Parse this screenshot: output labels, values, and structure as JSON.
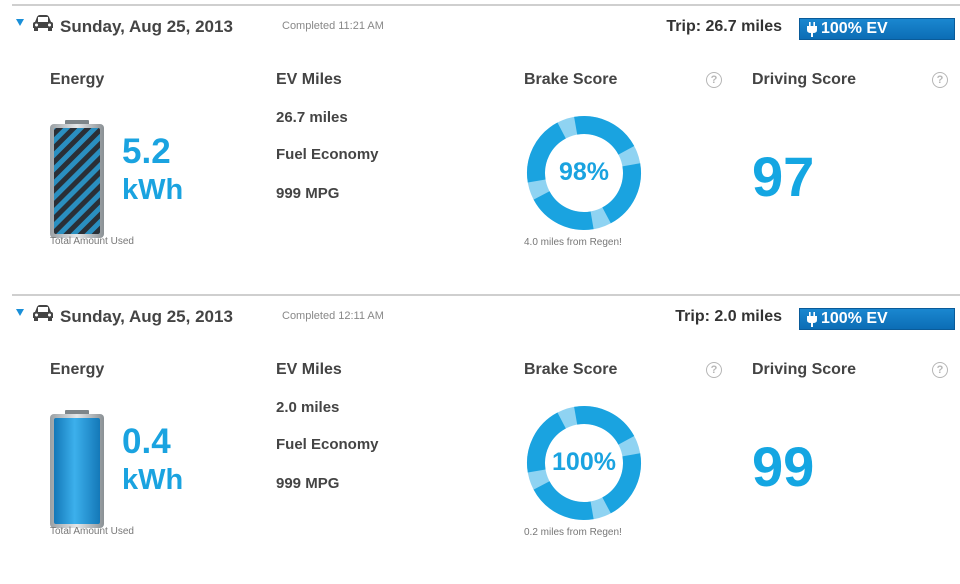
{
  "trips": [
    {
      "date": "Sunday, Aug 25, 2013",
      "completed": "Completed 11:21 AM",
      "trip_distance": "Trip: 26.7 miles",
      "ev_badge": "100% EV",
      "energy_label": "Energy",
      "energy_value": "5.2",
      "energy_unit": "kWh",
      "battery_fill_fraction": 1.0,
      "battery_style": "striped",
      "energy_caption": "Total Amount Used",
      "ev_miles_label": "EV Miles",
      "ev_miles_value": "26.7 miles",
      "fuel_economy_label": "Fuel Economy",
      "fuel_economy_value": "999 MPG",
      "brake_label": "Brake Score",
      "brake_score": "98%",
      "brake_fraction": 0.98,
      "regen_caption": "4.0 miles from Regen!",
      "driving_label": "Driving Score",
      "driving_score": "97",
      "help_glyph": "?"
    },
    {
      "date": "Sunday, Aug 25, 2013",
      "completed": "Completed 12:11 AM",
      "trip_distance": "Trip: 2.0 miles",
      "ev_badge": "100% EV",
      "energy_label": "Energy",
      "energy_value": "0.4",
      "energy_unit": "kWh",
      "battery_fill_fraction": 1.0,
      "battery_style": "solid",
      "energy_caption": "Total Amount Used",
      "ev_miles_label": "EV Miles",
      "ev_miles_value": "2.0 miles",
      "fuel_economy_label": "Fuel Economy",
      "fuel_economy_value": "999 MPG",
      "brake_label": "Brake Score",
      "brake_score": "100%",
      "brake_fraction": 1.0,
      "regen_caption": "0.2 miles from Regen!",
      "driving_label": "Driving Score",
      "driving_score": "99",
      "help_glyph": "?"
    }
  ],
  "colors": {
    "accent": "#1aa3e0",
    "badge": "#0c6db5",
    "ring_light": "#8fd3f2",
    "divider": "#cfcfcf"
  },
  "icons": [
    "car-icon",
    "plug-icon",
    "help-icon",
    "battery-icon",
    "expand-triangle-icon"
  ]
}
